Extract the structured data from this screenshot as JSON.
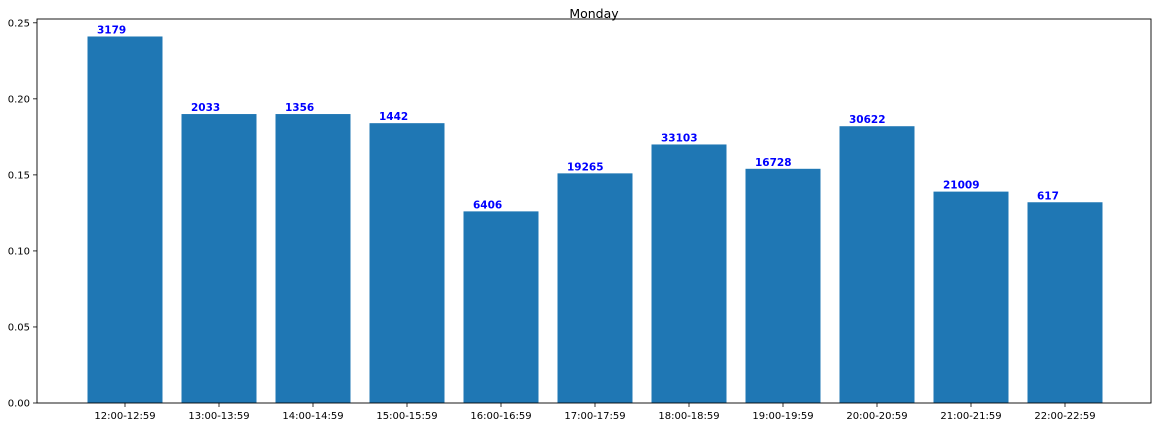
{
  "chart_data": {
    "type": "bar",
    "title": "Monday",
    "xlabel": "",
    "ylabel": "",
    "categories": [
      "12:00-12:59",
      "13:00-13:59",
      "14:00-14:59",
      "15:00-15:59",
      "16:00-16:59",
      "17:00-17:59",
      "18:00-18:59",
      "19:00-19:59",
      "20:00-20:59",
      "21:00-21:59",
      "22:00-22:59"
    ],
    "values": [
      0.241,
      0.19,
      0.19,
      0.184,
      0.126,
      0.151,
      0.17,
      0.154,
      0.182,
      0.139,
      0.132
    ],
    "data_labels": [
      "3179",
      "2033",
      "1356",
      "1442",
      "6406",
      "19265",
      "33103",
      "16728",
      "30622",
      "21009",
      "617"
    ],
    "ylim": [
      0,
      0.2525
    ],
    "yticks": [
      0.0,
      0.05,
      0.1,
      0.15,
      0.2,
      0.25
    ],
    "ytick_labels": [
      "0.00",
      "0.05",
      "0.10",
      "0.15",
      "0.20",
      "0.25"
    ],
    "grid": false,
    "bar_color": "#1f77b4",
    "data_label_color": "#0000ff"
  }
}
